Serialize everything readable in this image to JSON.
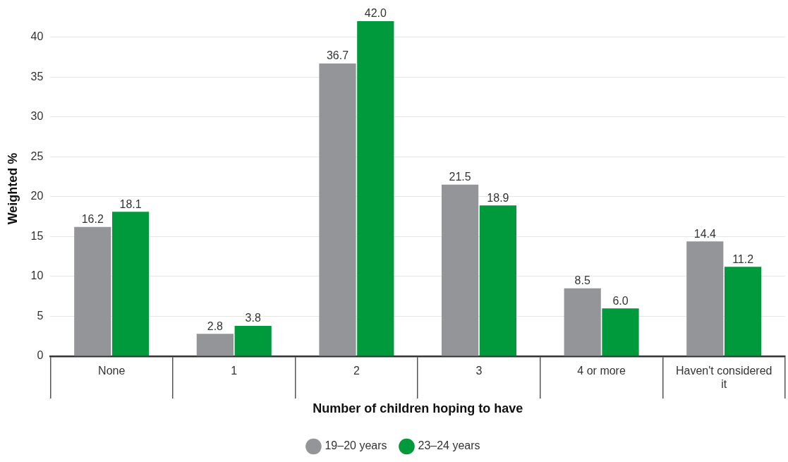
{
  "chart_data": {
    "type": "bar",
    "xlabel": "Number of children hoping to have",
    "ylabel": "Weighted %",
    "categories": [
      "None",
      "1",
      "2",
      "3",
      "4 or more",
      "Haven't considered it"
    ],
    "series": [
      {
        "name": "19–20 years",
        "color": "#939598",
        "values": [
          16.2,
          2.8,
          36.7,
          21.5,
          8.5,
          14.4
        ]
      },
      {
        "name": "23–24 years",
        "color": "#00993c",
        "values": [
          18.1,
          3.8,
          42.0,
          18.9,
          6.0,
          11.2
        ]
      }
    ],
    "value_labels": [
      [
        "16.2",
        "2.8",
        "36.7",
        "21.5",
        "8.5",
        "14.4"
      ],
      [
        "18.1",
        "3.8",
        "42.0",
        "18.9",
        "6.0",
        "11.2"
      ]
    ],
    "ylim": [
      0,
      42
    ],
    "yticks": [
      0,
      5,
      10,
      15,
      20,
      25,
      30,
      35,
      40
    ],
    "grid": "y",
    "legend": "bottom"
  }
}
